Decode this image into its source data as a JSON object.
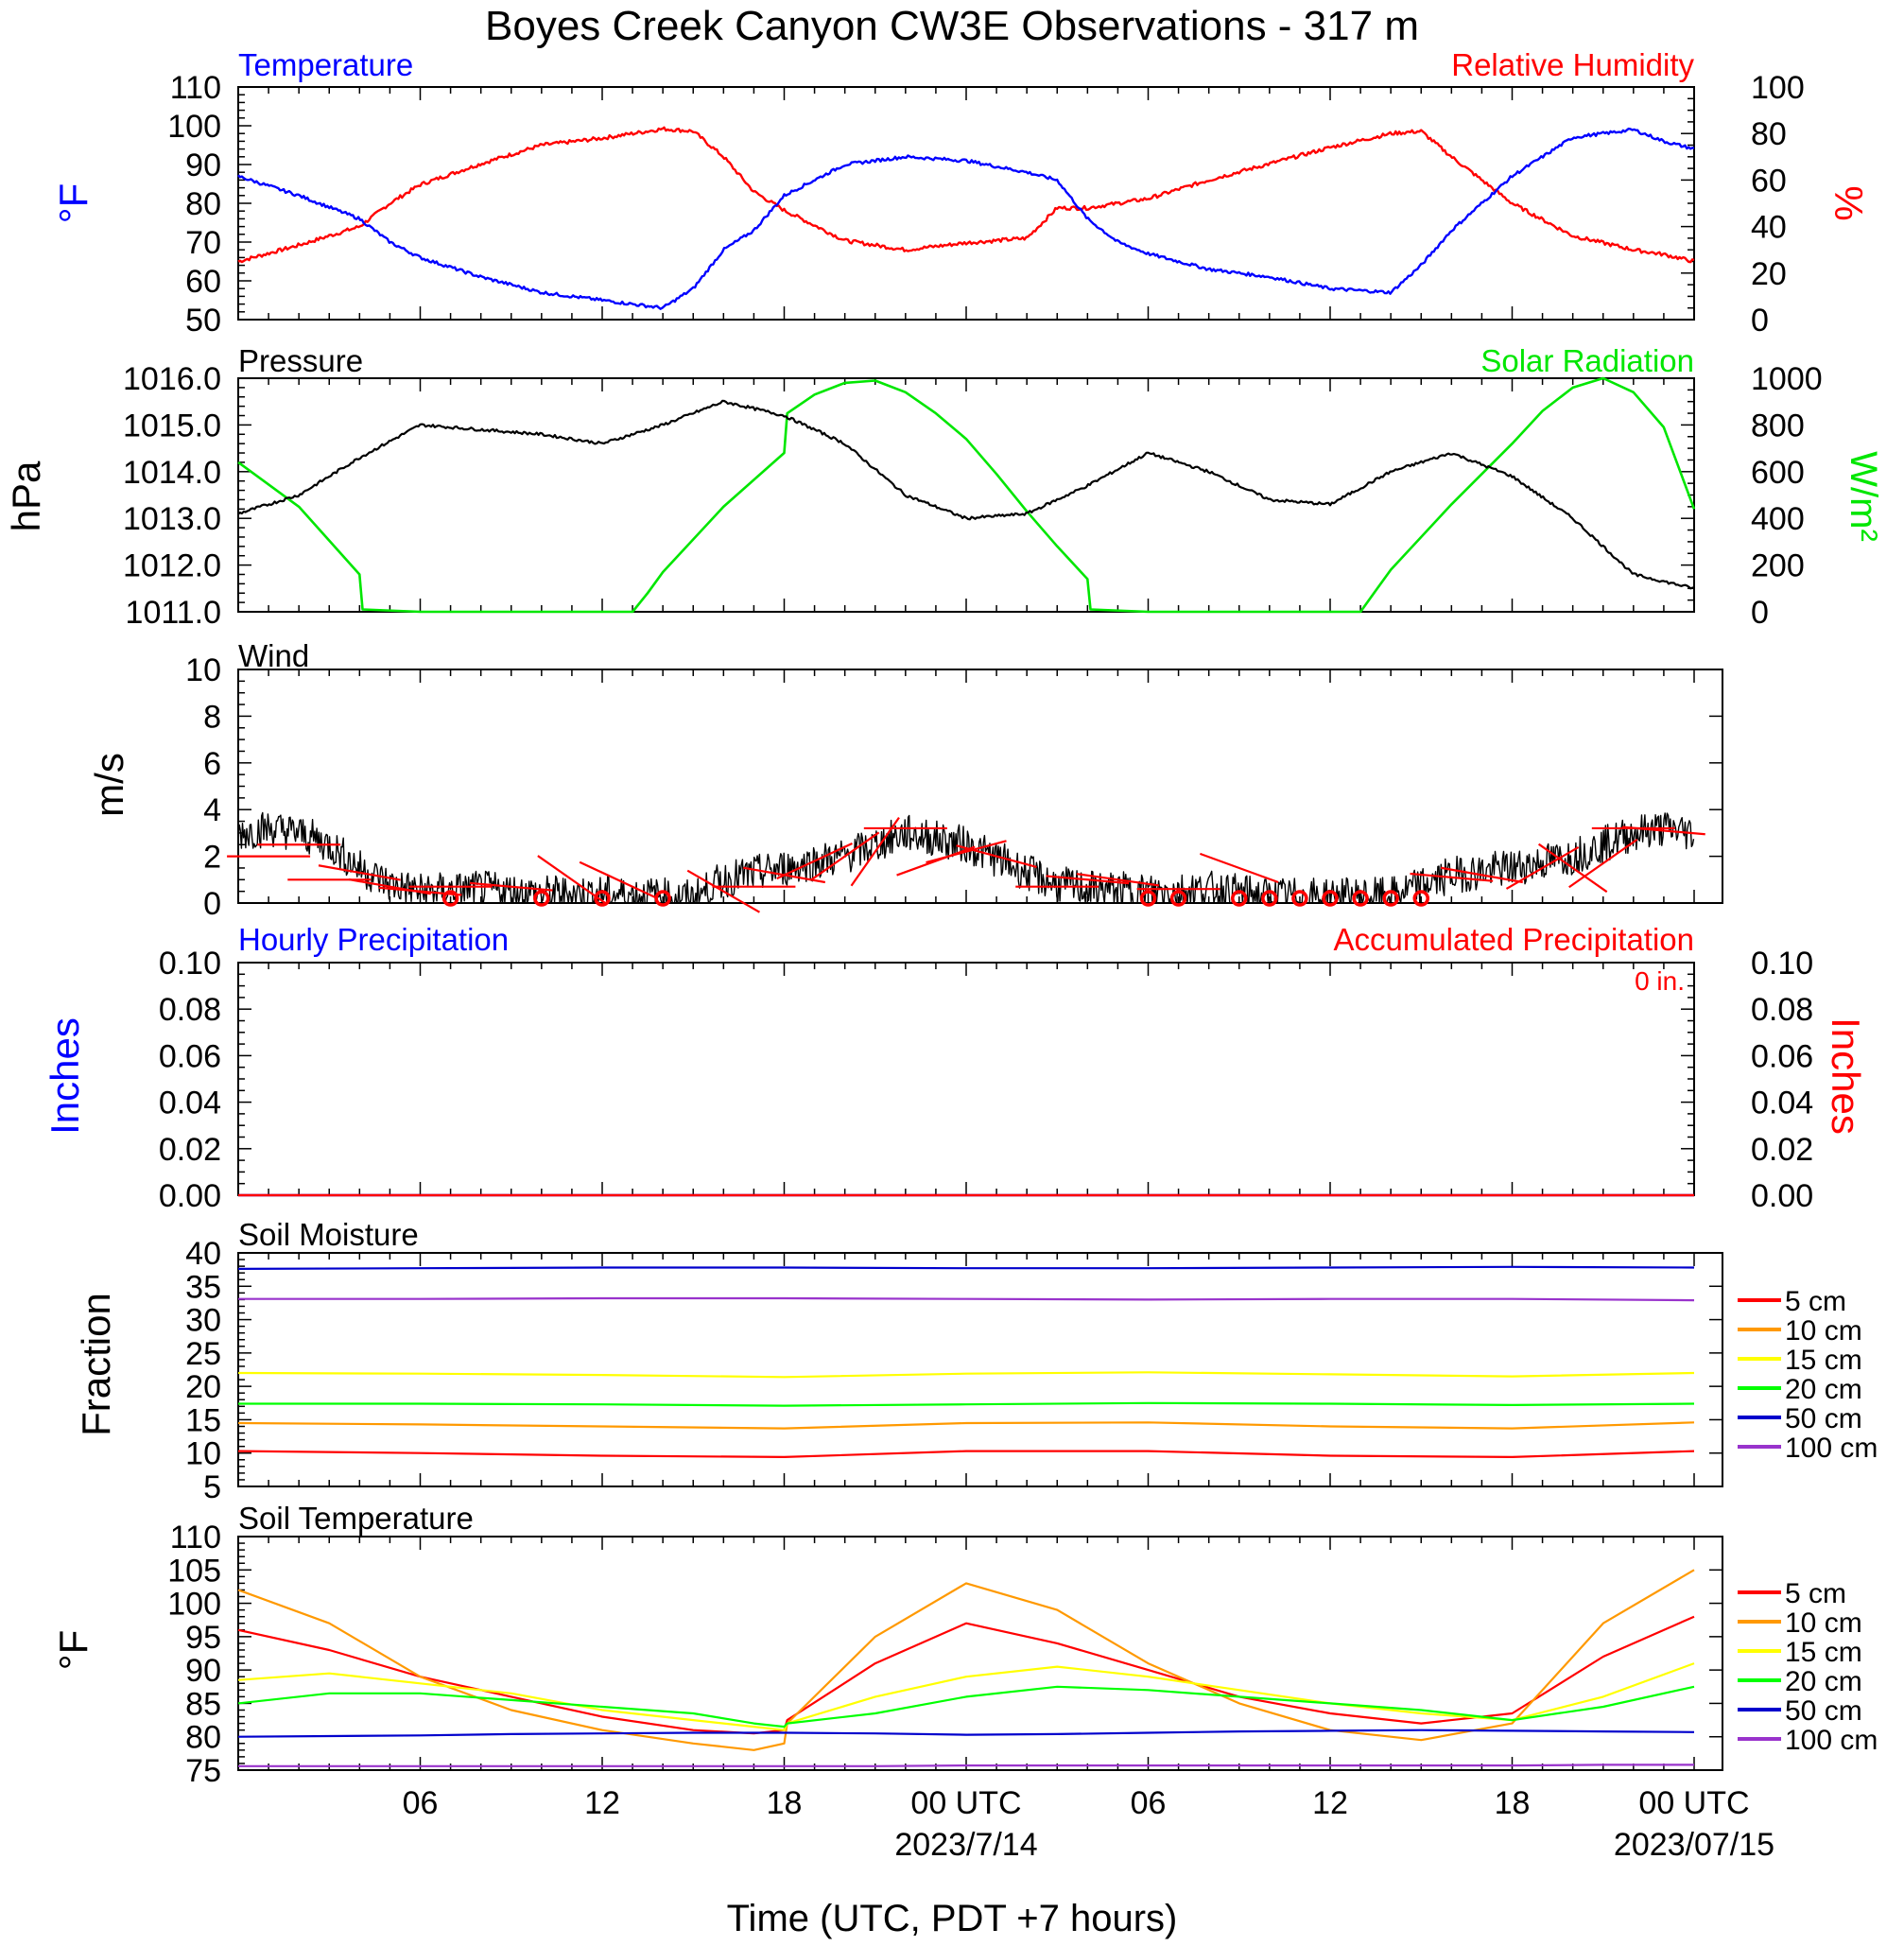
{
  "title": "Boyes Creek Canyon CW3E Observations - 317 m",
  "x_axis": {
    "label": "Time (UTC, PDT +7 hours)",
    "tick_labels": [
      {
        "hour": 6,
        "label": "06"
      },
      {
        "hour": 12,
        "label": "12"
      },
      {
        "hour": 18,
        "label": "18"
      },
      {
        "hour": 24,
        "label": "00 UTC"
      },
      {
        "hour": 30,
        "label": "06"
      },
      {
        "hour": 36,
        "label": "12"
      },
      {
        "hour": 42,
        "label": "18"
      },
      {
        "hour": 48,
        "label": "00 UTC"
      }
    ],
    "date_labels": [
      {
        "hour": 24,
        "label": "2023/7/14"
      },
      {
        "hour": 48,
        "label": "2023/07/15"
      }
    ]
  },
  "colors": {
    "temperature": "#0000ff",
    "humidity": "#ff0000",
    "pressure": "#000000",
    "solar": "#00e600",
    "wind_speed": "#000000",
    "wind_barb": "#ff0000",
    "precip_left": "#0000ff",
    "precip_right": "#ff0000"
  },
  "soil_legend": [
    {
      "label": "5 cm",
      "color": "#ff0000"
    },
    {
      "label": "10 cm",
      "color": "#ff9900"
    },
    {
      "label": "15 cm",
      "color": "#ffff00"
    },
    {
      "label": "20 cm",
      "color": "#00ff00"
    },
    {
      "label": "50 cm",
      "color": "#0000cc"
    },
    {
      "label": "100 cm",
      "color": "#9933cc"
    }
  ],
  "chart_data": [
    {
      "panel": "temperature_humidity",
      "type": "line",
      "left_title": "Temperature",
      "right_title": "Relative Humidity",
      "left_unit": "°F",
      "right_unit": "%",
      "x_hours": [
        0,
        2,
        4,
        5,
        6,
        8,
        10,
        12,
        14,
        15,
        16,
        17,
        18,
        20,
        22,
        24,
        26,
        27,
        28,
        29,
        30,
        32,
        34,
        36,
        38,
        39,
        40,
        42,
        44,
        46,
        47,
        48
      ],
      "series": [
        {
          "name": "Temperature",
          "axis": "left",
          "ylim": [
            50,
            110
          ],
          "yticks": [
            "50",
            "60",
            "70",
            "80",
            "90",
            "100",
            "110"
          ],
          "values": [
            87,
            82,
            76,
            70,
            66,
            61,
            57,
            55,
            53,
            58,
            68,
            73,
            82,
            90,
            92,
            91,
            88,
            86,
            76,
            70,
            67,
            63,
            61,
            58,
            57,
            64,
            73,
            87,
            97,
            99,
            96,
            94
          ]
        },
        {
          "name": "Relative Humidity",
          "axis": "right",
          "ylim": [
            0,
            100
          ],
          "yticks": [
            "0",
            "20",
            "40",
            "60",
            "80",
            "100"
          ],
          "values": [
            25,
            32,
            40,
            50,
            58,
            67,
            75,
            78,
            82,
            81,
            70,
            55,
            47,
            34,
            30,
            33,
            35,
            48,
            48,
            50,
            52,
            60,
            67,
            74,
            80,
            81,
            70,
            50,
            36,
            30,
            28,
            25
          ]
        }
      ]
    },
    {
      "panel": "pressure_solar",
      "type": "line",
      "left_title": "Pressure",
      "right_title": "Solar Radiation",
      "left_unit": "hPa",
      "right_unit": "W/m²",
      "pressure": {
        "name": "Pressure",
        "ylim": [
          1011,
          1016
        ],
        "yticks": [
          "1011.0",
          "1012.0",
          "1013.0",
          "1014.0",
          "1015.0",
          "1016.0"
        ],
        "x_hours": [
          0,
          2,
          4,
          6,
          8,
          10,
          12,
          14,
          16,
          18,
          20,
          22,
          24,
          26,
          28,
          30,
          32,
          34,
          36,
          38,
          40,
          42,
          44,
          46,
          48
        ],
        "values": [
          1013.1,
          1013.5,
          1014.3,
          1015.0,
          1014.9,
          1014.8,
          1014.6,
          1015.0,
          1015.5,
          1015.2,
          1014.6,
          1013.5,
          1013.0,
          1013.1,
          1013.7,
          1014.4,
          1014.0,
          1013.4,
          1013.3,
          1014.0,
          1014.4,
          1013.9,
          1013.0,
          1011.8,
          1011.5
        ]
      },
      "solar": {
        "name": "Solar Radiation",
        "ylim": [
          0,
          1000
        ],
        "yticks": [
          "0",
          "200",
          "400",
          "600",
          "800",
          "1000"
        ],
        "x_hours": [
          0,
          2,
          4,
          4.1,
          6,
          13,
          13.5,
          14,
          16,
          18,
          18.1,
          19,
          20,
          21,
          22,
          23,
          24,
          25,
          26,
          27,
          28,
          28.1,
          30,
          37,
          37.5,
          38,
          40,
          42,
          43,
          44,
          45,
          46,
          47,
          48
        ],
        "values": [
          640,
          450,
          160,
          10,
          0,
          0,
          80,
          170,
          450,
          680,
          850,
          930,
          980,
          990,
          940,
          850,
          740,
          590,
          430,
          280,
          140,
          10,
          0,
          0,
          90,
          180,
          460,
          720,
          860,
          960,
          1000,
          940,
          790,
          440
        ]
      }
    },
    {
      "panel": "wind",
      "type": "line",
      "title": "Wind",
      "unit": "m/s",
      "ylim": [
        0,
        10
      ],
      "yticks": [
        "0",
        "2",
        "4",
        "6",
        "8",
        "10"
      ],
      "x_hours": [
        0,
        1,
        2,
        3,
        4,
        5,
        6,
        8,
        10,
        12,
        14,
        15,
        16,
        18,
        20,
        22,
        24,
        26,
        27,
        28,
        30,
        32,
        34,
        36,
        38,
        40,
        42,
        44,
        46,
        47,
        48
      ],
      "values": [
        3.0,
        3.2,
        3.0,
        2.5,
        1.5,
        0.8,
        0.5,
        0.6,
        0.4,
        0.4,
        0.3,
        0.2,
        1.0,
        1.5,
        2.0,
        3.0,
        2.5,
        1.3,
        0.8,
        0.6,
        0.5,
        0.6,
        0.3,
        0.3,
        0.3,
        1.2,
        1.5,
        2.0,
        3.0,
        3.2,
        3.0
      ],
      "barbs": [
        {
          "hour": 1,
          "speed": 2.0,
          "angle": 0
        },
        {
          "hour": 2,
          "speed": 2.5,
          "angle": 0
        },
        {
          "hour": 3,
          "speed": 1.0,
          "angle": 0
        },
        {
          "hour": 4,
          "speed": 1.3,
          "angle": 10
        },
        {
          "hour": 5,
          "speed": 0.7,
          "angle": 10
        },
        {
          "hour": 6,
          "speed": 0.5,
          "angle": 5
        },
        {
          "hour": 7,
          "speed": 0.7,
          "angle": 0
        },
        {
          "hour": 9,
          "speed": 0.7,
          "angle": 5
        },
        {
          "hour": 11,
          "speed": 1.0,
          "angle": 35
        },
        {
          "hour": 12.5,
          "speed": 1.0,
          "angle": 25
        },
        {
          "hour": 16,
          "speed": 0.5,
          "angle": 30
        },
        {
          "hour": 17,
          "speed": 0.7,
          "angle": 0
        },
        {
          "hour": 18,
          "speed": 1.2,
          "angle": 10
        },
        {
          "hour": 19,
          "speed": 1.8,
          "angle": -25
        },
        {
          "hour": 20,
          "speed": 2.0,
          "angle": -35
        },
        {
          "hour": 21,
          "speed": 2.2,
          "angle": -55
        },
        {
          "hour": 22,
          "speed": 3.2,
          "angle": 0
        },
        {
          "hour": 23,
          "speed": 1.8,
          "angle": -20
        },
        {
          "hour": 24,
          "speed": 2.2,
          "angle": -15
        },
        {
          "hour": 25,
          "speed": 2.0,
          "angle": 15
        },
        {
          "hour": 27,
          "speed": 0.7,
          "angle": 0
        },
        {
          "hour": 28,
          "speed": 1.0,
          "angle": 5
        },
        {
          "hour": 29,
          "speed": 1.0,
          "angle": 8
        },
        {
          "hour": 31,
          "speed": 0.6,
          "angle": 0
        },
        {
          "hour": 33,
          "speed": 1.5,
          "angle": 20
        },
        {
          "hour": 40,
          "speed": 1.1,
          "angle": 5
        },
        {
          "hour": 41,
          "speed": 1.2,
          "angle": 10
        },
        {
          "hour": 43,
          "speed": 1.5,
          "angle": -30
        },
        {
          "hour": 44,
          "speed": 1.5,
          "angle": 35
        },
        {
          "hour": 45,
          "speed": 1.7,
          "angle": -35
        },
        {
          "hour": 46,
          "speed": 3.2,
          "angle": 0
        },
        {
          "hour": 47,
          "speed": 3.1,
          "angle": 5
        }
      ],
      "calm_hours": [
        7,
        10,
        12,
        14,
        30,
        31,
        33,
        34,
        35,
        36,
        37,
        38,
        39
      ]
    },
    {
      "panel": "precipitation",
      "type": "line",
      "left_title": "Hourly Precipitation",
      "right_title": "Accumulated Precipitation",
      "left_unit": "Inches",
      "right_unit": "Inches",
      "total_label": "0 in.",
      "ylim": [
        0,
        0.1
      ],
      "yticks": [
        "0.00",
        "0.02",
        "0.04",
        "0.06",
        "0.08",
        "0.10"
      ],
      "x_hours": [
        0,
        48
      ],
      "series": [
        {
          "name": "Hourly Precipitation",
          "values": [
            0,
            0
          ]
        },
        {
          "name": "Accumulated Precipitation",
          "values": [
            0,
            0
          ]
        }
      ]
    },
    {
      "panel": "soil_moisture",
      "type": "line",
      "title": "Soil Moisture",
      "unit": "Fraction",
      "ylim": [
        5,
        40
      ],
      "yticks": [
        "5",
        "10",
        "15",
        "20",
        "25",
        "30",
        "35",
        "40"
      ],
      "x_hours": [
        0,
        6,
        12,
        18,
        24,
        30,
        36,
        42,
        48
      ],
      "series": [
        {
          "name": "5 cm",
          "values": [
            10.3,
            10.0,
            9.6,
            9.4,
            10.3,
            10.3,
            9.6,
            9.4,
            10.3
          ]
        },
        {
          "name": "10 cm",
          "values": [
            14.5,
            14.3,
            14.0,
            13.7,
            14.5,
            14.6,
            14.0,
            13.7,
            14.6
          ]
        },
        {
          "name": "15 cm",
          "values": [
            22.0,
            21.9,
            21.7,
            21.4,
            21.9,
            22.1,
            21.8,
            21.5,
            22.0
          ]
        },
        {
          "name": "20 cm",
          "values": [
            17.4,
            17.4,
            17.3,
            17.1,
            17.3,
            17.5,
            17.4,
            17.2,
            17.4
          ]
        },
        {
          "name": "50 cm",
          "values": [
            37.6,
            37.7,
            37.8,
            37.8,
            37.7,
            37.7,
            37.8,
            37.9,
            37.8
          ]
        },
        {
          "name": "100 cm",
          "values": [
            33.1,
            33.1,
            33.2,
            33.2,
            33.1,
            33.0,
            33.1,
            33.1,
            32.9
          ]
        }
      ]
    },
    {
      "panel": "soil_temperature",
      "type": "line",
      "title": "Soil Temperature",
      "unit": "°F",
      "ylim": [
        75,
        110
      ],
      "yticks": [
        "75",
        "80",
        "85",
        "90",
        "95",
        "100",
        "105",
        "110"
      ],
      "x_hours": [
        0,
        3,
        6,
        9,
        12,
        15,
        17,
        18,
        18.1,
        21,
        24,
        27,
        30,
        33,
        36,
        39,
        42,
        45,
        48
      ],
      "series": [
        {
          "name": "5 cm",
          "values": [
            96,
            93,
            89,
            86,
            83,
            81,
            80.5,
            81,
            82.5,
            91,
            97,
            94,
            90,
            86,
            83.5,
            82,
            83.5,
            92,
            98
          ]
        },
        {
          "name": "10 cm",
          "values": [
            102,
            97,
            89,
            84,
            81,
            79,
            78,
            79,
            82,
            95,
            103,
            99,
            91,
            85,
            81,
            79.5,
            82,
            97,
            105
          ]
        },
        {
          "name": "15 cm",
          "values": [
            88.5,
            89.5,
            88,
            86.5,
            84,
            82.5,
            81.5,
            81,
            82,
            86,
            89,
            90.5,
            89,
            87,
            85,
            83.5,
            82.5,
            86,
            91
          ]
        },
        {
          "name": "20 cm",
          "values": [
            85,
            86.5,
            86.5,
            85.5,
            84.5,
            83.5,
            82,
            81.5,
            82,
            83.5,
            86,
            87.5,
            87,
            86,
            85,
            84,
            82.5,
            84.5,
            87.5
          ]
        },
        {
          "name": "50 cm",
          "values": [
            80.0,
            80.1,
            80.2,
            80.4,
            80.5,
            80.6,
            80.6,
            80.6,
            80.6,
            80.5,
            80.3,
            80.4,
            80.6,
            80.8,
            80.9,
            81.0,
            80.9,
            80.8,
            80.7
          ]
        },
        {
          "name": "100 cm",
          "values": [
            75.6,
            75.6,
            75.6,
            75.6,
            75.6,
            75.6,
            75.6,
            75.6,
            75.6,
            75.6,
            75.7,
            75.7,
            75.7,
            75.7,
            75.7,
            75.7,
            75.7,
            75.8,
            75.8
          ]
        }
      ]
    }
  ]
}
